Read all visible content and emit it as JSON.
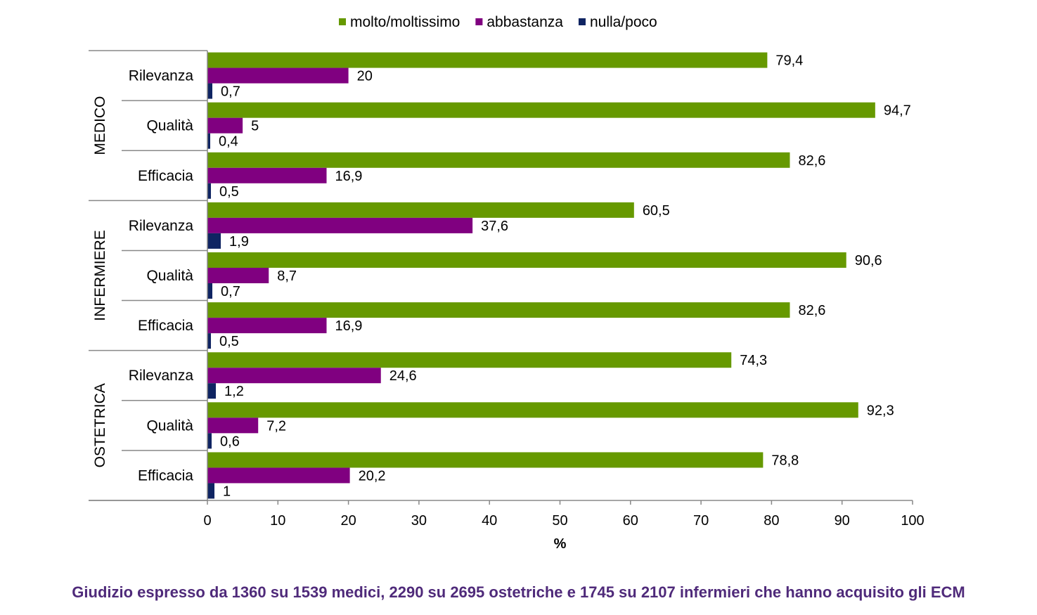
{
  "chart_data": {
    "type": "bar",
    "orientation": "horizontal",
    "groups": [
      {
        "name": "MEDICO",
        "categories": [
          "Rilevanza",
          "Qualità",
          "Efficacia"
        ]
      },
      {
        "name": "INFERMIERE",
        "categories": [
          "Rilevanza",
          "Qualità",
          "Efficacia"
        ]
      },
      {
        "name": "OSTETRICA",
        "categories": [
          "Rilevanza",
          "Qualità",
          "Efficacia"
        ]
      }
    ],
    "series": [
      {
        "name": "molto/moltissimo",
        "color": "#669900",
        "values": [
          79.4,
          94.7,
          82.6,
          60.5,
          90.6,
          82.6,
          74.3,
          92.3,
          78.8
        ],
        "labels": [
          "79,4",
          "94,7",
          "82,6",
          "60,5",
          "90,6",
          "82,6",
          "74,3",
          "92,3",
          "78,8"
        ]
      },
      {
        "name": "abbastanza",
        "color": "#800080",
        "values": [
          20,
          5,
          16.9,
          37.6,
          8.7,
          16.9,
          24.6,
          7.2,
          20.2
        ],
        "labels": [
          "20",
          "5",
          "16,9",
          "37,6",
          "8,7",
          "16,9",
          "24,6",
          "7,2",
          "20,2"
        ]
      },
      {
        "name": "nulla/poco",
        "color": "#0f2462",
        "values": [
          0.7,
          0.4,
          0.5,
          1.9,
          0.7,
          0.5,
          1.2,
          0.6,
          1
        ],
        "labels": [
          "0,7",
          "0,4",
          "0,5",
          "1,9",
          "0,7",
          "0,5",
          "1,2",
          "0,6",
          "1"
        ]
      }
    ],
    "xlim": [
      0,
      100
    ],
    "xticks": [
      "0",
      "10",
      "20",
      "30",
      "40",
      "50",
      "60",
      "70",
      "80",
      "90",
      "100"
    ],
    "xlabel": "%",
    "legend_position": "top",
    "grid": false
  },
  "caption": "Giudizio espresso da 1360 su 1539 medici, 2290 su 2695 ostetriche e 1745 su 2107 infermieri che hanno acquisito gli ECM"
}
